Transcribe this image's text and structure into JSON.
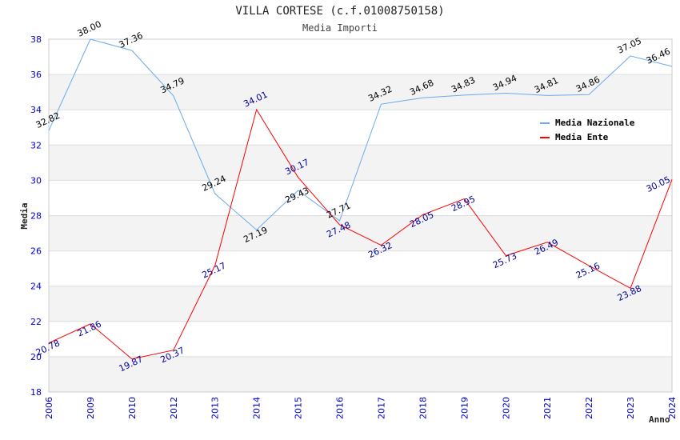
{
  "chart_data": {
    "type": "line",
    "title": "VILLA CORTESE (c.f.01008750158)",
    "subtitle": "Media Importi",
    "xlabel": "Anno",
    "ylabel": "Media",
    "ylim": [
      18,
      38
    ],
    "yticks": [
      "18",
      "20",
      "22",
      "24",
      "26",
      "28",
      "30",
      "32",
      "34",
      "36",
      "38"
    ],
    "categories": [
      "2006",
      "2009",
      "2010",
      "2012",
      "2013",
      "2014",
      "2015",
      "2016",
      "2017",
      "2018",
      "2019",
      "2020",
      "2021",
      "2022",
      "2023",
      "2024"
    ],
    "legend_position": "top-right",
    "series": [
      {
        "name": "Media Nazionale",
        "color": "#6aaaee",
        "label_color": "#000000",
        "values": [
          32.82,
          38.0,
          37.36,
          34.79,
          29.24,
          27.19,
          29.43,
          27.71,
          34.32,
          34.68,
          34.83,
          34.94,
          34.81,
          34.86,
          37.05,
          36.46
        ]
      },
      {
        "name": "Media Ente",
        "color": "#ff0000",
        "label_color": "#000099",
        "values": [
          20.78,
          21.86,
          19.87,
          20.37,
          25.17,
          34.01,
          30.17,
          27.48,
          26.32,
          28.05,
          28.95,
          25.73,
          26.49,
          25.16,
          23.88,
          30.05
        ]
      }
    ]
  }
}
